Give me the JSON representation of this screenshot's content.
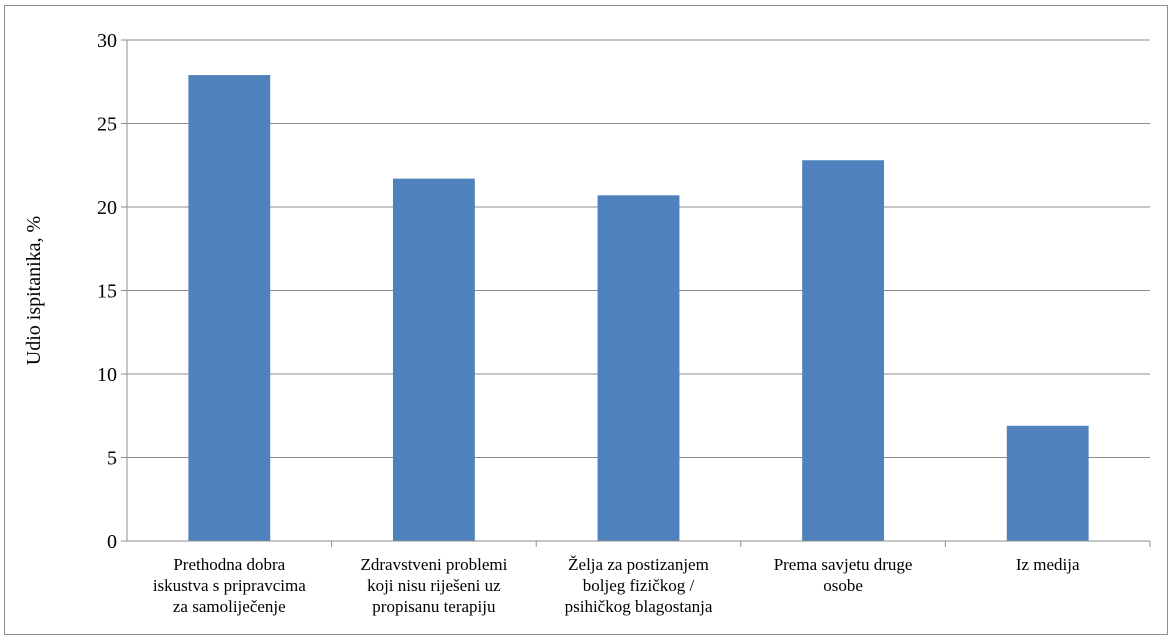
{
  "chart_data": {
    "type": "bar",
    "title": "",
    "xlabel": "",
    "ylabel": "Udio ispitanika, %",
    "ylim": [
      0,
      30
    ],
    "yticks": [
      0,
      5,
      10,
      15,
      20,
      25,
      30
    ],
    "grid": true,
    "legend": "none",
    "bar_color": "#4f81bd",
    "categories": [
      [
        "Prethodna dobra",
        "iskustva s pripravcima",
        "za samoliječenje"
      ],
      [
        "Zdravstveni problemi",
        "koji nisu riješeni uz",
        "propisanu terapiju"
      ],
      [
        "Želja za postizanjem",
        "boljeg fizičkog /",
        "psihičkog blagostanja"
      ],
      [
        "Prema savjetu druge",
        "osobe"
      ],
      [
        "Iz medija"
      ]
    ],
    "values": [
      27.9,
      21.7,
      20.7,
      22.8,
      6.9
    ]
  }
}
